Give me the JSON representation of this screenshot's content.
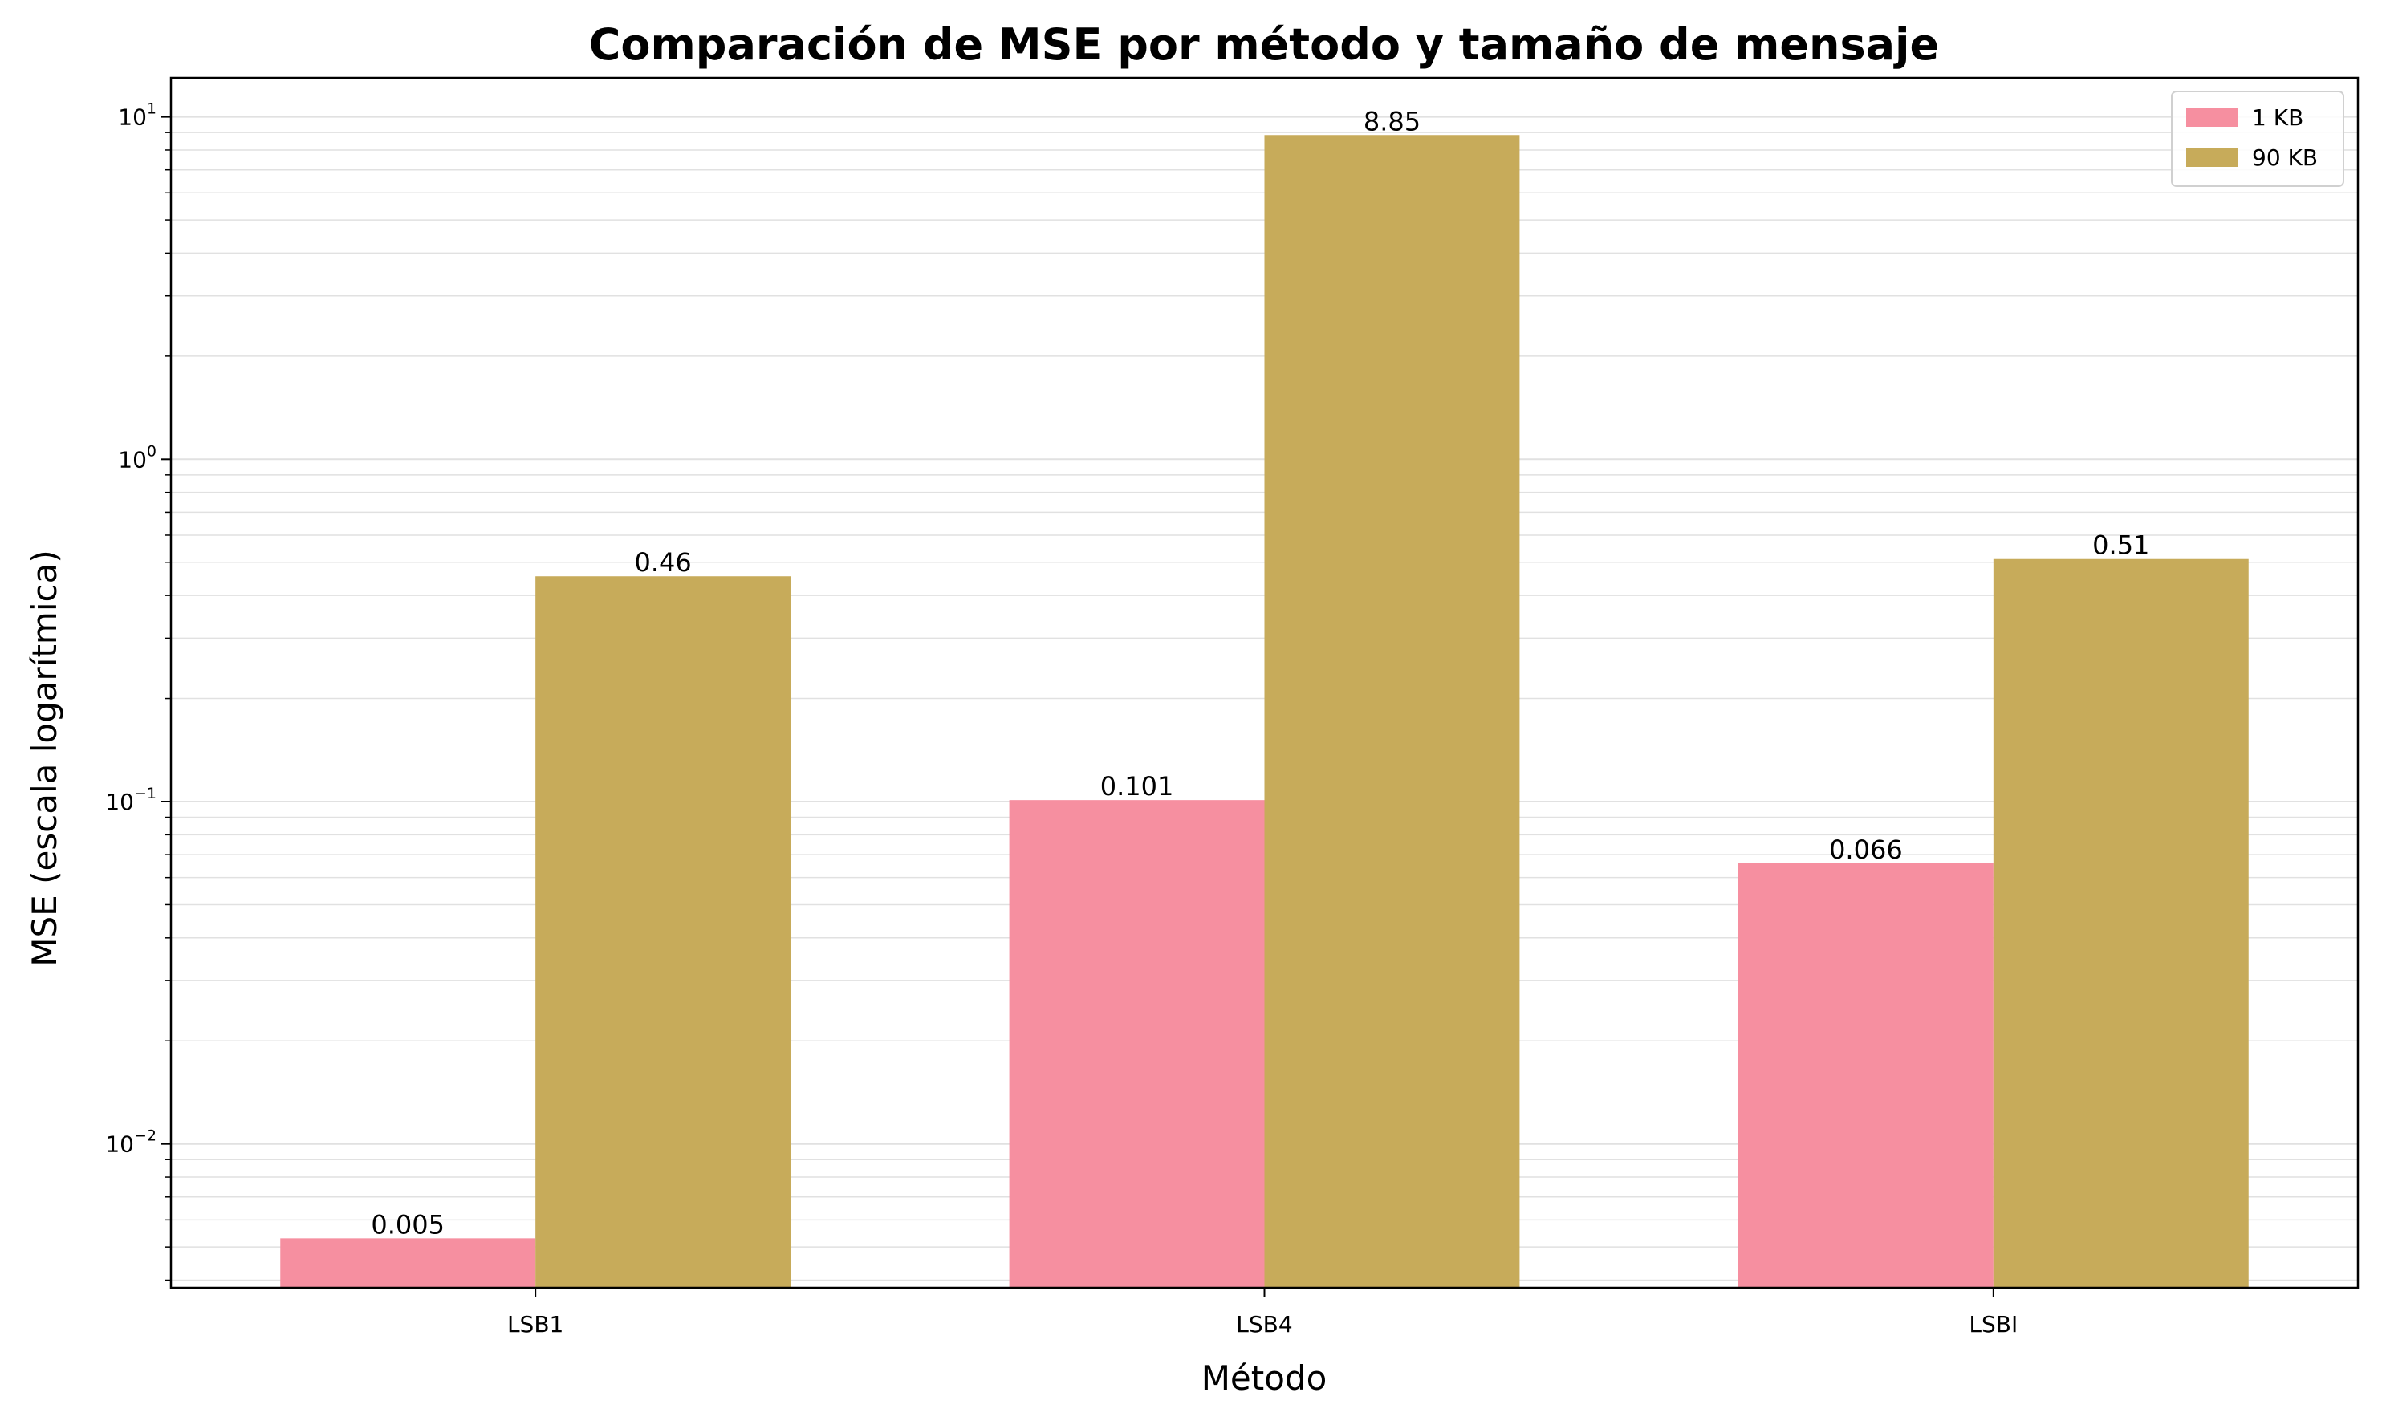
{
  "chart_data": {
    "type": "bar",
    "title": "Comparación de MSE por método y tamaño de mensaje",
    "xlabel": "Método",
    "ylabel": "MSE (escala logarítmica)",
    "yscale": "log",
    "ylim": [
      0.0038,
      13
    ],
    "grid": true,
    "legend_position": "top-right",
    "categories": [
      "LSB1",
      "LSB4",
      "LSBI"
    ],
    "series": [
      {
        "name": "1 KB",
        "color": "#f68fa0",
        "values": [
          0.0053,
          0.101,
          0.066
        ],
        "labels": [
          "0.005",
          "0.101",
          "0.066"
        ]
      },
      {
        "name": "90 KB",
        "color": "#c7ab5a",
        "values": [
          0.455,
          8.85,
          0.511
        ],
        "labels": [
          "0.46",
          "8.85",
          "0.51"
        ]
      }
    ],
    "y_ticks": [
      {
        "value": 0.01,
        "base": "10",
        "exp": "−2"
      },
      {
        "value": 0.1,
        "base": "10",
        "exp": "−1"
      },
      {
        "value": 1,
        "base": "10",
        "exp": "0"
      },
      {
        "value": 10,
        "base": "10",
        "exp": "1"
      }
    ]
  }
}
